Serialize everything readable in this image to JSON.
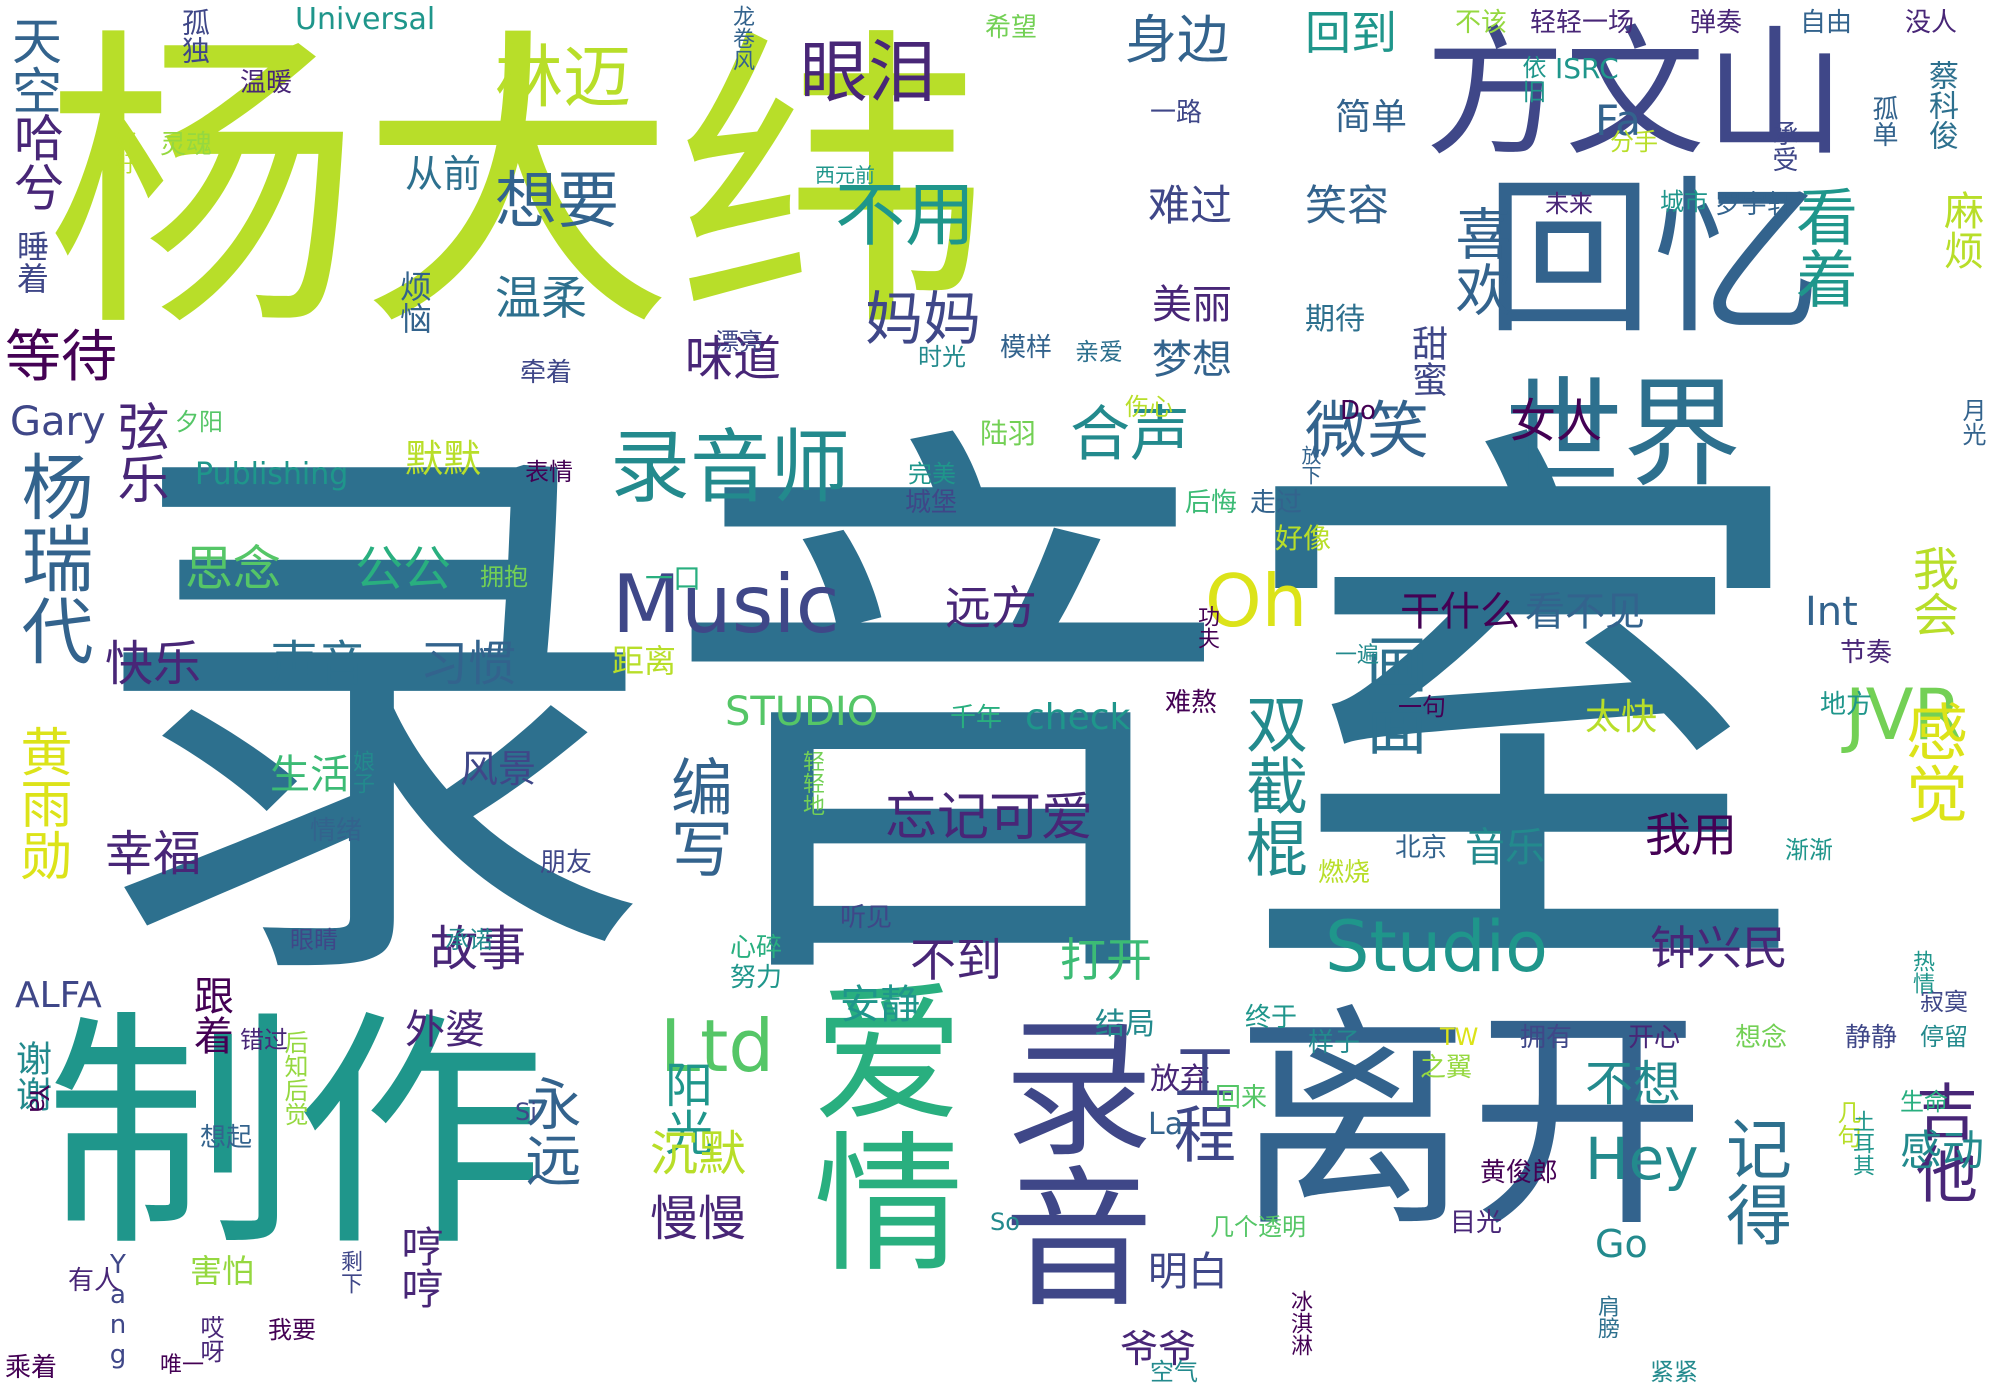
{
  "palette": {
    "c1": "#440154",
    "c2": "#482677",
    "c3": "#3f4788",
    "c4": "#33638d",
    "c5": "#2d708e",
    "c6": "#238a8d",
    "c7": "#1f968b",
    "c8": "#29af7f",
    "c9": "#3cbb75",
    "c10": "#55c667",
    "c11": "#73d055",
    "c12": "#95d840",
    "c13": "#b8de29",
    "c14": "#dce319",
    "c15": "#fde725"
  },
  "words": {
    "yang_da_wei": "杨大纬",
    "lu_yin_shi_big": "录音室",
    "li_kai": "离开",
    "zhi_zuo": "制作",
    "ai_qing": "爱情",
    "lu_yin": "录音",
    "fang_wen_shan": "方文山",
    "hui_yi": "回忆",
    "shi_jie": "世界",
    "lu_yin_shi": "录音师",
    "music": "Music",
    "oh": "Oh",
    "ltd": "Ltd",
    "studio": "Studio",
    "jvr": "JVR",
    "shuang_jie_gun": "双截棍",
    "lin_mai": "林迈",
    "yan_lei": "眼泪",
    "tian_kong": "天空",
    "ha_xi": "哈兮",
    "gu_du": "孤独",
    "universal": "Universal",
    "wen_nuan": "温暖",
    "ling_hun": "灵魂",
    "hao_hao": "好好",
    "shui_zhe": "睡着",
    "deng_dai": "等待",
    "gary": "Gary",
    "xian_yue": "弦乐",
    "yang_rui_dai": "杨瑞代",
    "huang_yu_xun": "黄雨勋",
    "xie_xie": "谢谢",
    "alfa": "ALFA",
    "ya": "Ya",
    "yang": "Yang",
    "cheng_zhe": "乘着",
    "you_ren": "有人",
    "ai_ya": "哎呀",
    "xiang_yao": "想要",
    "wen_rou": "温柔",
    "wei_dao": "味道",
    "bu_yong": "不用",
    "ma_ma": "妈妈",
    "he_sheng": "合声",
    "wei_xiao": "微笑",
    "si_nian": "思念",
    "gong_gong": "公公",
    "kuai_le": "快乐",
    "sheng_yin": "声音",
    "xi_guan": "习惯",
    "xing_fu": "幸福",
    "sheng_huo": "生活",
    "gu_shi": "故事",
    "bian_xie": "编写",
    "yong_yuan": "永远",
    "hai_pa": "害怕",
    "heng_heng": "哼哼",
    "man_man": "慢慢",
    "yang_guang": "阳光",
    "chen_mo": "沉默",
    "an_jing": "安静",
    "jie_ju": "结局",
    "fang_qi": "放弃",
    "wai_po": "外婆",
    "gong_cheng": "工程",
    "hua_mian": "画面",
    "wang_ji_ke_ai": "忘记可爱",
    "bu_dao": "不到",
    "da_kai": "打开",
    "yuan_fang": "远方",
    "gan_shen_me": "干什么",
    "kan_bu_jian": "看不见",
    "int": "Int",
    "wo_hui": "我会",
    "gan_jue": "感觉",
    "ji_de": "记得",
    "ji_ta": "吉他",
    "hey": "Hey",
    "go": "Go",
    "ye_ye": "爷爷",
    "bu_xiang": "不想",
    "gan_dong": "感动",
    "ming_bai": "明白",
    "shen_bian": "身边",
    "hui_dao": "回到",
    "xi_huan": "喜欢",
    "kan_zhe": "看着",
    "ma_fan": "麻烦",
    "tian_mi": "甜蜜",
    "nv_ren": "女人",
    "mei_li": "美丽",
    "meng_xiang": "梦想",
    "nan_guo": "难过",
    "xiao_rong": "笑容",
    "jian_dan": "简单",
    "mo_mo": "默默",
    "cong_qian": "从前",
    "fan_nao": "烦恼",
    "studio_caps": "STUDIO",
    "check": "check",
    "qian_nian": "千年",
    "ju_li": "距离",
    "tai_kuai": "太快",
    "feng_jing": "风景",
    "wo_yong": "我用",
    "yin_yue": "音乐",
    "zhong_xing_min": "钟兴民",
    "publishing": "Publishing",
    "biao_qing": "表情",
    "cheng_bao": "城堡",
    "yi_kou": "一口",
    "yong_bao": "拥抱",
    "hou_hui": "后悔",
    "zou_guo": "走过",
    "hao_xiang": "好像",
    "wan_mei": "完美",
    "lu_yu": "陆羽",
    "shang_xin": "伤心",
    "xi_yang": "夕阳",
    "qian_zhe": "牵着",
    "piao_liang": "漂亮",
    "shi_guang": "时光",
    "mo_yang": "模样",
    "qin_ai": "亲爱",
    "qi_dai": "期待",
    "fang_xia": "放下",
    "do_word": "Do",
    "yue_guang": "月光",
    "cheng_shi": "城市",
    "luo_yu_xuan": "罗宇轩",
    "wei_lai": "未来",
    "xi_yuan_qian": "西元前",
    "fa": "Fa",
    "isrc": "ISRC",
    "yi_jiu": "依旧",
    "fen_shou": "分手",
    "cheng_shou": "承受",
    "gu_dan": "孤单",
    "cai_ke_jun": "蔡科俊",
    "mei_ren": "没人",
    "tan_zou": "弹奏",
    "zi_you": "自由",
    "qing_qing_yi_chang": "轻轻一场",
    "bu_gai": "不该",
    "long_juan_feng": "龙卷风",
    "xi_wang": "希望",
    "yi_lu": "一路",
    "niang_zi": "娘子",
    "qing_qing_de": "轻轻地",
    "qing_xu": "情绪",
    "peng_you": "朋友",
    "yan_jing": "眼睛",
    "cheng_nuo": "承诺",
    "gen_zhe": "跟着",
    "cuo_guo": "错过",
    "hou_zhi_hou_jue": "后知后觉",
    "xiang_qi": "想起",
    "si": "Si",
    "la": "La",
    "shen_xia": "剩下",
    "wo_yao": "我要",
    "wei_yi": "唯一",
    "kong_qi": "空气",
    "bing_qi_lin": "冰淇淋",
    "jian_bang": "肩膀",
    "jin_jin": "紧紧",
    "mu_guang": "目光",
    "ji_ge_tou_ming": "几个透明",
    "so": "So",
    "huang_jun_lang": "黄俊郎",
    "sheng_ming": "生命",
    "ji_ju": "几句",
    "tu_er_qi": "土耳其",
    "ji_mo": "寂寞",
    "ting_liu": "停留",
    "xiang_nian2": "想念",
    "jing_jing": "静静",
    "yong_you": "拥有",
    "kai_xin": "开心",
    "yang_zi": "样子",
    "zhong_yu": "终于",
    "tw": "TW",
    "zhi_yi": "之翼",
    "re_qing": "热情",
    "jian_jian": "渐渐",
    "di_fang": "地方",
    "jie_zou": "节奏",
    "yi_ju": "一句",
    "yi_bian": "一遍",
    "gong_fu": "功夫",
    "nan_ao": "难熬",
    "bei_jing": "北京",
    "ting_jian": "听见",
    "xin_sui": "心碎",
    "nu_li": "努力",
    "ran_shao": "燃烧",
    "hui_lai": "回来"
  }
}
